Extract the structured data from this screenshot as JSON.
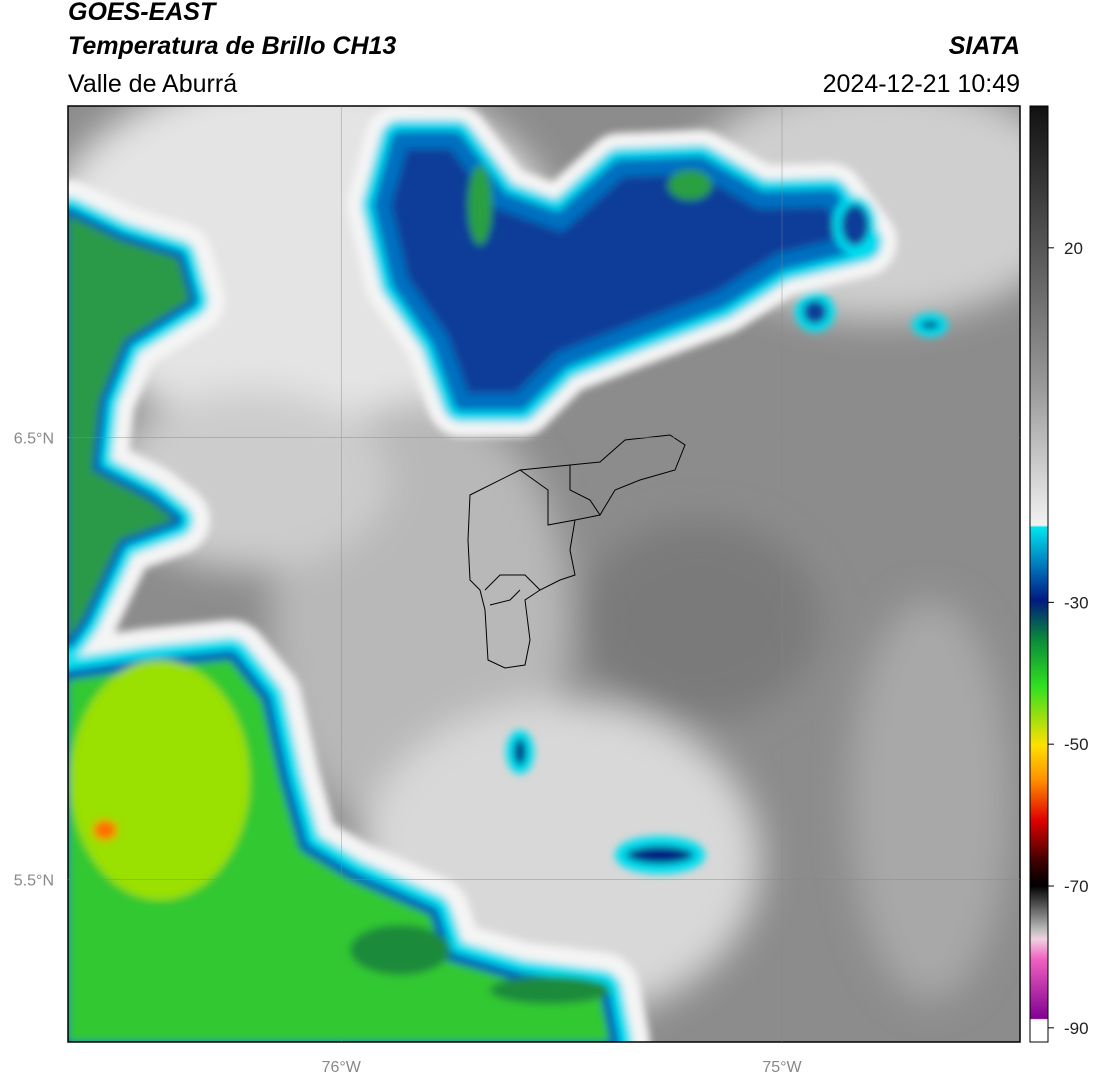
{
  "header": {
    "title": "GOES-EAST",
    "subtitle": "Temperatura de Brillo CH13",
    "region": "Valle de Aburrá",
    "source": "SIATA",
    "datetime": "2024-12-21 10:49"
  },
  "map": {
    "lon_range": [
      -76.62,
      -74.46
    ],
    "lat_range": [
      5.133,
      7.25
    ],
    "lon_ticks": [
      {
        "value": -76,
        "label": "76°W"
      },
      {
        "value": -75,
        "label": "75°W"
      }
    ],
    "lat_ticks": [
      {
        "value": 6.5,
        "label": "6.5°N"
      },
      {
        "value": 5.5,
        "label": "5.5°N"
      }
    ]
  },
  "colorbar": {
    "range": [
      -92,
      40
    ],
    "ticks": [
      20,
      -30,
      -50,
      -70,
      -90
    ]
  }
}
